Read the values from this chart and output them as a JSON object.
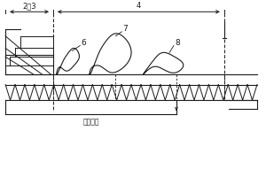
{
  "bg_color": "#ffffff",
  "line_color": "#1a1a1a",
  "labels": {
    "2_3": "2、3",
    "4": "4",
    "6": "6",
    "7": "7",
    "8": "8",
    "bottom_text": "燃烧庢气"
  },
  "fig_width": 3.0,
  "fig_height": 2.0,
  "dpi": 100
}
